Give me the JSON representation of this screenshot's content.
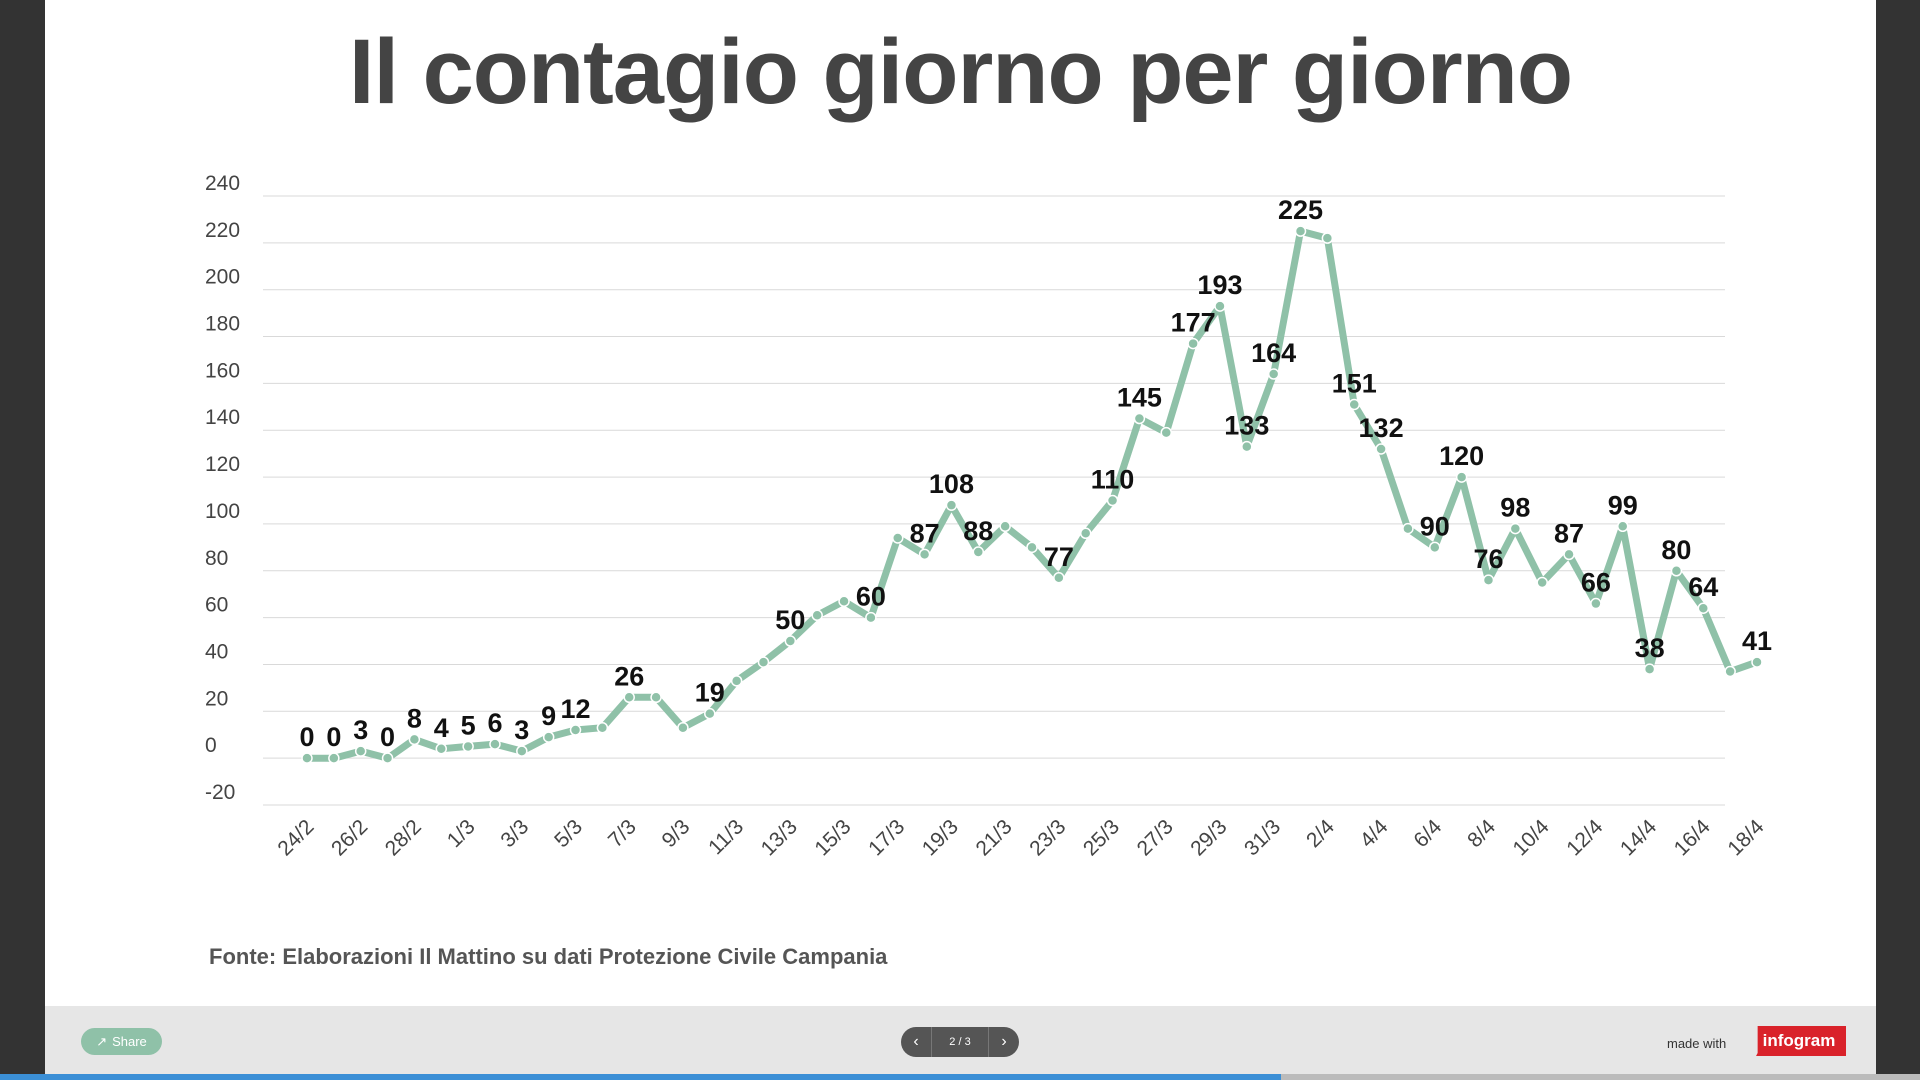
{
  "title": "Il contagio giorno per giorno",
  "source": "Fonte: Elaborazioni Il Mattino su dati Protezione Civile Campania",
  "footer": {
    "share_label": "Share",
    "page_indicator": "2 / 3",
    "made_with": "made with",
    "brand": "infogram",
    "progress": 0.667
  },
  "colors": {
    "line": "#8fc1a8",
    "grid": "#d9d9d9",
    "progress": "#3b8fd6",
    "brand": "#d9222a"
  },
  "icons": {
    "share": "share-icon",
    "prev": "chevron-left-icon",
    "next": "chevron-right-icon"
  },
  "chart_data": {
    "type": "line",
    "title": "Il contagio giorno per giorno",
    "xlabel": "",
    "ylabel": "",
    "ylim": [
      -20,
      240
    ],
    "yticks": [
      -20,
      0,
      20,
      40,
      60,
      80,
      100,
      120,
      140,
      160,
      180,
      200,
      220,
      240
    ],
    "grid": true,
    "x": [
      "24/2",
      "25/2",
      "26/2",
      "27/2",
      "28/2",
      "29/2",
      "1/3",
      "2/3",
      "3/3",
      "4/3",
      "5/3",
      "6/3",
      "7/3",
      "8/3",
      "9/3",
      "10/3",
      "11/3",
      "12/3",
      "13/3",
      "14/3",
      "15/3",
      "16/3",
      "17/3",
      "18/3",
      "19/3",
      "20/3",
      "21/3",
      "22/3",
      "23/3",
      "24/3",
      "25/3",
      "26/3",
      "27/3",
      "28/3",
      "29/3",
      "30/3",
      "31/3",
      "1/4",
      "2/4",
      "3/4",
      "4/4",
      "5/4",
      "6/4",
      "7/4",
      "8/4",
      "9/4",
      "10/4",
      "11/4",
      "12/4",
      "13/4",
      "14/4",
      "15/4",
      "16/4",
      "17/4",
      "18/4"
    ],
    "x_tick_labels": [
      "24/2",
      "26/2",
      "28/2",
      "1/3",
      "3/3",
      "5/3",
      "7/3",
      "9/3",
      "11/3",
      "13/3",
      "15/3",
      "17/3",
      "19/3",
      "21/3",
      "23/3",
      "25/3",
      "27/3",
      "29/3",
      "31/3",
      "2/4",
      "4/4",
      "6/4",
      "8/4",
      "10/4",
      "12/4",
      "14/4",
      "16/4",
      "18/4"
    ],
    "values": [
      0,
      0,
      3,
      0,
      8,
      4,
      5,
      6,
      3,
      9,
      12,
      13,
      26,
      26,
      13,
      19,
      33,
      41,
      50,
      61,
      67,
      60,
      94,
      87,
      108,
      88,
      99,
      90,
      77,
      96,
      110,
      145,
      139,
      177,
      193,
      133,
      164,
      225,
      222,
      151,
      132,
      98,
      90,
      120,
      76,
      98,
      75,
      87,
      66,
      99,
      38,
      80,
      64,
      37,
      41
    ],
    "labels": [
      {
        "i": 0,
        "text": "0"
      },
      {
        "i": 1,
        "text": "0"
      },
      {
        "i": 2,
        "text": "3"
      },
      {
        "i": 3,
        "text": "0"
      },
      {
        "i": 4,
        "text": "8"
      },
      {
        "i": 5,
        "text": "4"
      },
      {
        "i": 6,
        "text": "5"
      },
      {
        "i": 7,
        "text": "6"
      },
      {
        "i": 8,
        "text": "3"
      },
      {
        "i": 9,
        "text": "9"
      },
      {
        "i": 10,
        "text": "12"
      },
      {
        "i": 12,
        "text": "26"
      },
      {
        "i": 15,
        "text": "19"
      },
      {
        "i": 18,
        "text": "50"
      },
      {
        "i": 21,
        "text": "60"
      },
      {
        "i": 23,
        "text": "87"
      },
      {
        "i": 24,
        "text": "108"
      },
      {
        "i": 25,
        "text": "88"
      },
      {
        "i": 28,
        "text": "77"
      },
      {
        "i": 30,
        "text": "110"
      },
      {
        "i": 31,
        "text": "145"
      },
      {
        "i": 33,
        "text": "177"
      },
      {
        "i": 34,
        "text": "193"
      },
      {
        "i": 35,
        "text": "133"
      },
      {
        "i": 36,
        "text": "164"
      },
      {
        "i": 37,
        "text": "225"
      },
      {
        "i": 39,
        "text": "151"
      },
      {
        "i": 40,
        "text": "132"
      },
      {
        "i": 42,
        "text": "90"
      },
      {
        "i": 43,
        "text": "120"
      },
      {
        "i": 44,
        "text": "76"
      },
      {
        "i": 45,
        "text": "98"
      },
      {
        "i": 47,
        "text": "87"
      },
      {
        "i": 48,
        "text": "66"
      },
      {
        "i": 49,
        "text": "99"
      },
      {
        "i": 50,
        "text": "38"
      },
      {
        "i": 51,
        "text": "80"
      },
      {
        "i": 52,
        "text": "64"
      },
      {
        "i": 54,
        "text": "41"
      }
    ]
  }
}
